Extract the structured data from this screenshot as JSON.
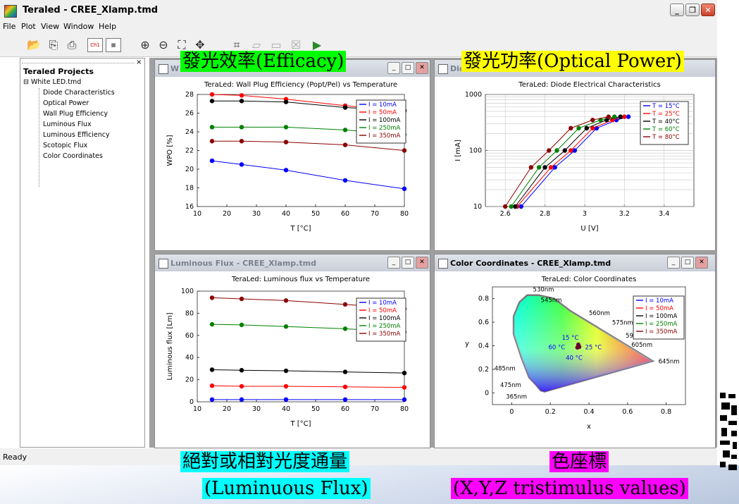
{
  "window": {
    "title": "Teraled - CREE_Xlamp.tmd"
  },
  "menu": [
    "File",
    "Plot",
    "View",
    "Window",
    "Help"
  ],
  "toolbar": {
    "ch1_label": "Ch1"
  },
  "projects": {
    "title": "Teraled Projects",
    "root": "White LED.tmd",
    "items": [
      "Diode Characteristics",
      "Optical Power",
      "Wall Plug Efficiency",
      "Luminous Flux",
      "Luminous Efficiency",
      "Scotopic Flux",
      "Color Coordinates"
    ]
  },
  "windows": {
    "wpe_title_fragment": "W",
    "diode_title_fragment": "Dio",
    "flux_title": "Luminous Flux - CREE_Xlamp.tmd",
    "color_title": "Color Coordinates - CREE_Xlamp.tmd"
  },
  "status": {
    "text": "Ready"
  },
  "overlays": {
    "efficacy": "發光效率(Efficacy)",
    "optical_power": "發光功率(Optical Power)",
    "flux_cn": "絕對或相對光度通量",
    "flux_en": "(Luminuous Flux)",
    "color_cn": "色座標",
    "color_en": "(X,Y,Z tristimulus values)"
  },
  "colors": {
    "s10mA": "#0000ff",
    "s50mA": "#ff0000",
    "s100mA": "#000000",
    "s250mA": "#008000",
    "s350mA": "#8b0000"
  },
  "chart_data": [
    {
      "type": "line",
      "title": "TeraLed: Wall Plug Efficiency (Popt/Pel) vs Temperature",
      "xlabel": "T [°C]",
      "ylabel": "WPO [%]",
      "xlim": [
        10,
        80
      ],
      "ylim": [
        16,
        28
      ],
      "xticks": [
        10,
        20,
        30,
        40,
        50,
        60,
        70,
        80
      ],
      "yticks": [
        16,
        18,
        20,
        22,
        24,
        26,
        28
      ],
      "x": [
        15,
        25,
        40,
        60,
        80
      ],
      "legend": "top-right",
      "series": [
        {
          "name": "I = 10mA",
          "values": [
            20.9,
            20.5,
            19.9,
            18.8,
            17.9
          ]
        },
        {
          "name": "I = 50mA",
          "values": [
            28.0,
            27.9,
            27.5,
            26.8,
            26.2
          ]
        },
        {
          "name": "I = 100mA",
          "values": [
            27.3,
            27.3,
            27.2,
            26.6,
            26.3
          ]
        },
        {
          "name": "I = 250mA",
          "values": [
            24.5,
            24.5,
            24.5,
            24.2,
            23.7
          ]
        },
        {
          "name": "I = 350mA",
          "values": [
            23.0,
            23.0,
            22.9,
            22.6,
            22.0
          ]
        }
      ]
    },
    {
      "type": "line",
      "title": "TeraLed: Diode Electrical Characteristics",
      "xlabel": "U [V]",
      "ylabel": "I [mA]",
      "xlim": [
        2.5,
        3.55
      ],
      "ylim": [
        10,
        1000
      ],
      "log_y": true,
      "xticks": [
        2.6,
        2.8,
        3,
        3.2,
        3.4
      ],
      "yticks": [
        10,
        100,
        1000
      ],
      "legend": "top-right",
      "series": [
        {
          "name": "T = 15°C",
          "x": [
            2.68,
            2.85,
            2.95,
            3.06,
            3.16,
            3.22
          ],
          "values": [
            10,
            50,
            100,
            250,
            350,
            400
          ]
        },
        {
          "name": "T = 25°C",
          "x": [
            2.66,
            2.83,
            2.93,
            3.04,
            3.14,
            3.2
          ],
          "values": [
            10,
            50,
            100,
            250,
            350,
            400
          ]
        },
        {
          "name": "T = 40°C",
          "x": [
            2.65,
            2.8,
            2.9,
            3.01,
            3.11,
            3.18
          ],
          "values": [
            10,
            50,
            100,
            250,
            350,
            400
          ]
        },
        {
          "name": "T = 60°C",
          "x": [
            2.63,
            2.77,
            2.86,
            2.97,
            3.08,
            3.15
          ],
          "values": [
            10,
            50,
            100,
            250,
            350,
            400
          ]
        },
        {
          "name": "T = 80°C",
          "x": [
            2.6,
            2.73,
            2.82,
            2.93,
            3.04,
            3.12
          ],
          "values": [
            10,
            50,
            100,
            250,
            350,
            400
          ]
        }
      ]
    },
    {
      "type": "line",
      "title": "TeraLed: Luminous flux vs Temperature",
      "xlabel": "T [°C]",
      "ylabel": "Luminous flux [Lm]",
      "xlim": [
        10,
        80
      ],
      "ylim": [
        0,
        100
      ],
      "xticks": [
        10,
        20,
        30,
        40,
        50,
        60,
        70,
        80
      ],
      "yticks": [
        0,
        20,
        40,
        60,
        80,
        100
      ],
      "x": [
        15,
        25,
        40,
        60,
        80
      ],
      "legend": "top-right",
      "series": [
        {
          "name": "I = 10mA",
          "values": [
            2,
            2,
            2,
            2,
            2
          ]
        },
        {
          "name": "I = 50mA",
          "values": [
            14.5,
            14,
            14,
            13.5,
            13
          ]
        },
        {
          "name": "I = 100mA",
          "values": [
            29,
            28.5,
            28,
            27,
            26
          ]
        },
        {
          "name": "I = 250mA",
          "values": [
            70,
            69.5,
            68,
            66,
            63
          ]
        },
        {
          "name": "I = 350mA",
          "values": [
            94,
            93,
            91.5,
            88,
            84
          ]
        }
      ]
    },
    {
      "type": "scatter",
      "title": "TeraLed: Color Coordinates",
      "xlabel": "x",
      "ylabel": "y",
      "xlim": [
        -0.1,
        0.9
      ],
      "ylim": [
        -0.1,
        0.9
      ],
      "xticks": [
        0,
        0.2,
        0.4,
        0.6,
        0.8
      ],
      "yticks": [
        0,
        0.2,
        0.4,
        0.6,
        0.8
      ],
      "wavelength_labels": [
        "530nm",
        "545nm",
        "560nm",
        "575nm",
        "590nm",
        "605nm",
        "645nm",
        "485nm",
        "475nm",
        "365nm"
      ],
      "temp_labels": [
        "15 °C",
        "60 °C",
        "25 °C",
        "40 °C"
      ],
      "points": [
        {
          "x": 0.345,
          "y": 0.41
        },
        {
          "x": 0.34,
          "y": 0.385
        },
        {
          "x": 0.35,
          "y": 0.39
        }
      ],
      "legend": "top-right",
      "series": [
        {
          "name": "I = 10mA"
        },
        {
          "name": "I = 50mA"
        },
        {
          "name": "I = 100mA"
        },
        {
          "name": "I = 250mA"
        },
        {
          "name": "I = 350mA"
        }
      ]
    }
  ]
}
